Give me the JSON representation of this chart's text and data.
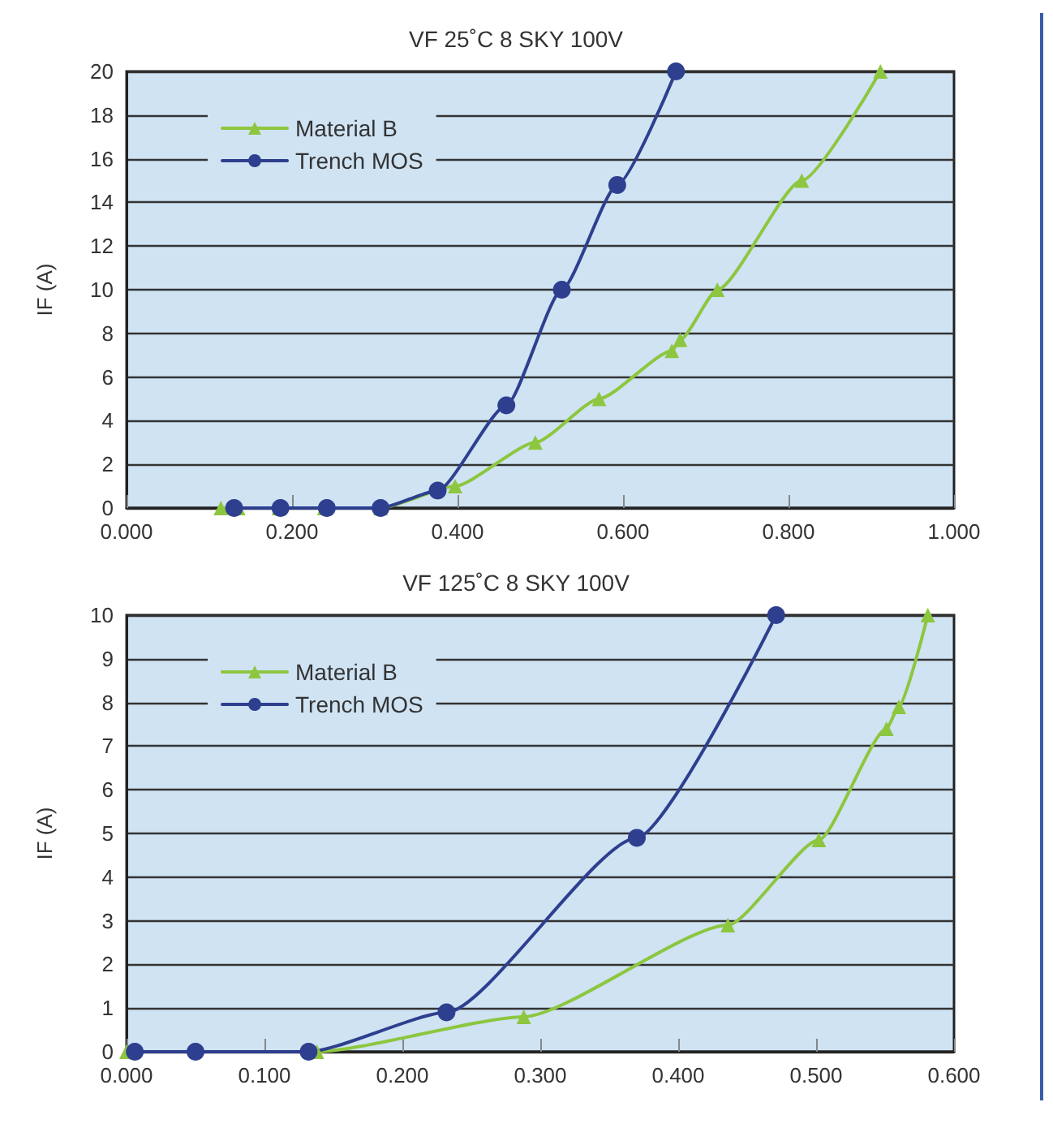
{
  "chart_data": [
    {
      "type": "line",
      "title": "VF 25˚C 8 SKY 100V",
      "ylabel": "IF (A)",
      "legend": "top left",
      "grid": "y",
      "line_style": "solid",
      "xlim": [
        0,
        1
      ],
      "xticks": [
        {
          "value": 0,
          "label": "0.000"
        },
        {
          "value": 0.2,
          "label": "0.200"
        },
        {
          "value": 0.4,
          "label": "0.400"
        },
        {
          "value": 0.6,
          "label": "0.600"
        },
        {
          "value": 0.8,
          "label": "0.800"
        },
        {
          "value": 1,
          "label": "1.000"
        }
      ],
      "ylim": [
        0,
        20
      ],
      "yticks": [
        0,
        2,
        4,
        6,
        8,
        10,
        12,
        14,
        16,
        18,
        20
      ],
      "series": [
        {
          "name": "Material B",
          "color": "#8dc63f",
          "marker": "triangle",
          "x": [
            0.114,
            0.135,
            0.184,
            0.239,
            0.307,
            0.397,
            0.494,
            0.571,
            0.659,
            0.669,
            0.714,
            0.816,
            0.911
          ],
          "values": [
            0,
            0,
            0,
            0,
            0,
            1,
            3,
            5,
            7.2,
            7.7,
            10,
            15,
            20
          ]
        },
        {
          "name": "Trench MOS",
          "color": "#2e3f8f",
          "marker": "circle",
          "x": [
            0.13,
            0.186,
            0.242,
            0.307,
            0.376,
            0.459,
            0.526,
            0.593,
            0.664
          ],
          "values": [
            0,
            0,
            0,
            0,
            0.8,
            4.7,
            10,
            14.8,
            20
          ]
        }
      ]
    },
    {
      "type": "line",
      "title": "VF 125˚C 8 SKY 100V",
      "ylabel": "IF (A)",
      "legend": "top left",
      "grid": "y",
      "line_style": "solid",
      "xlim": [
        0,
        0.6
      ],
      "xticks": [
        {
          "value": 0,
          "label": "0.000"
        },
        {
          "value": 0.1,
          "label": "0.100"
        },
        {
          "value": 0.2,
          "label": "0.200"
        },
        {
          "value": 0.3,
          "label": "0.300"
        },
        {
          "value": 0.4,
          "label": "0.400"
        },
        {
          "value": 0.5,
          "label": "0.500"
        },
        {
          "value": 0.6,
          "label": "0.600"
        }
      ],
      "ylim": [
        0,
        10
      ],
      "yticks": [
        0,
        1,
        2,
        3,
        4,
        5,
        6,
        7,
        8,
        9,
        10
      ],
      "series": [
        {
          "name": "Material B",
          "color": "#8dc63f",
          "marker": "triangle",
          "x": [
            0,
            0.138,
            0.288,
            0.436,
            0.502,
            0.551,
            0.56,
            0.581
          ],
          "values": [
            0,
            0,
            0.8,
            2.9,
            4.85,
            7.4,
            7.9,
            10
          ]
        },
        {
          "name": "Trench MOS",
          "color": "#2e3f8f",
          "marker": "circle",
          "x": [
            0.006,
            0.05,
            0.132,
            0.232,
            0.37,
            0.471
          ],
          "values": [
            0,
            0,
            0,
            0.9,
            4.9,
            10
          ]
        }
      ]
    }
  ]
}
